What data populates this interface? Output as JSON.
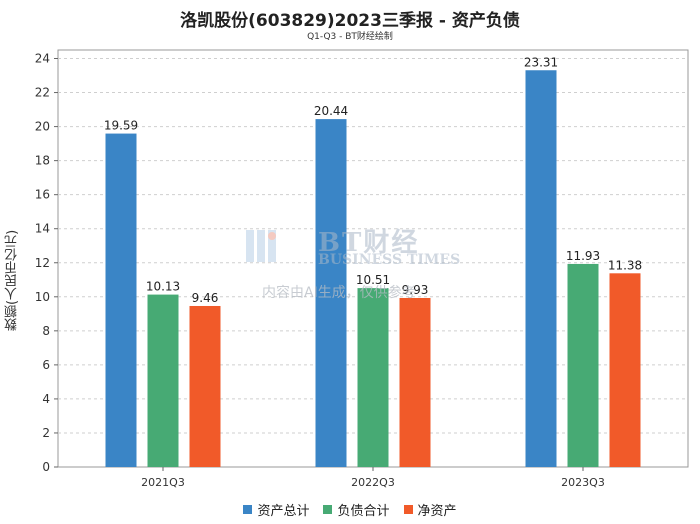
{
  "title": "洛凯股份(603829)2023三季报 - 资产负债",
  "subtitle": "Q1-Q3 - BT财经绘制",
  "watermark": {
    "brand": "BT财经",
    "brand_en": "BUSINESS TIMES",
    "note": "内容由AI生成，仅供参考"
  },
  "chart_data": {
    "type": "bar",
    "categories": [
      "2021Q3",
      "2022Q3",
      "2023Q3"
    ],
    "series": [
      {
        "name": "资产总计",
        "values": [
          19.59,
          20.44,
          23.31
        ],
        "color": "#3a85c6"
      },
      {
        "name": "负债合计",
        "values": [
          10.13,
          10.51,
          11.93
        ],
        "color": "#47aa74"
      },
      {
        "name": "净资产",
        "values": [
          9.46,
          9.93,
          11.38
        ],
        "color": "#f15a29"
      }
    ],
    "ylabel": "数额(人民币亿元)",
    "ylim": [
      0,
      24.5
    ],
    "yticks": [
      0,
      2,
      4,
      6,
      8,
      10,
      12,
      14,
      16,
      18,
      20,
      22,
      24
    ],
    "grid": true,
    "legend_position": "bottom"
  }
}
